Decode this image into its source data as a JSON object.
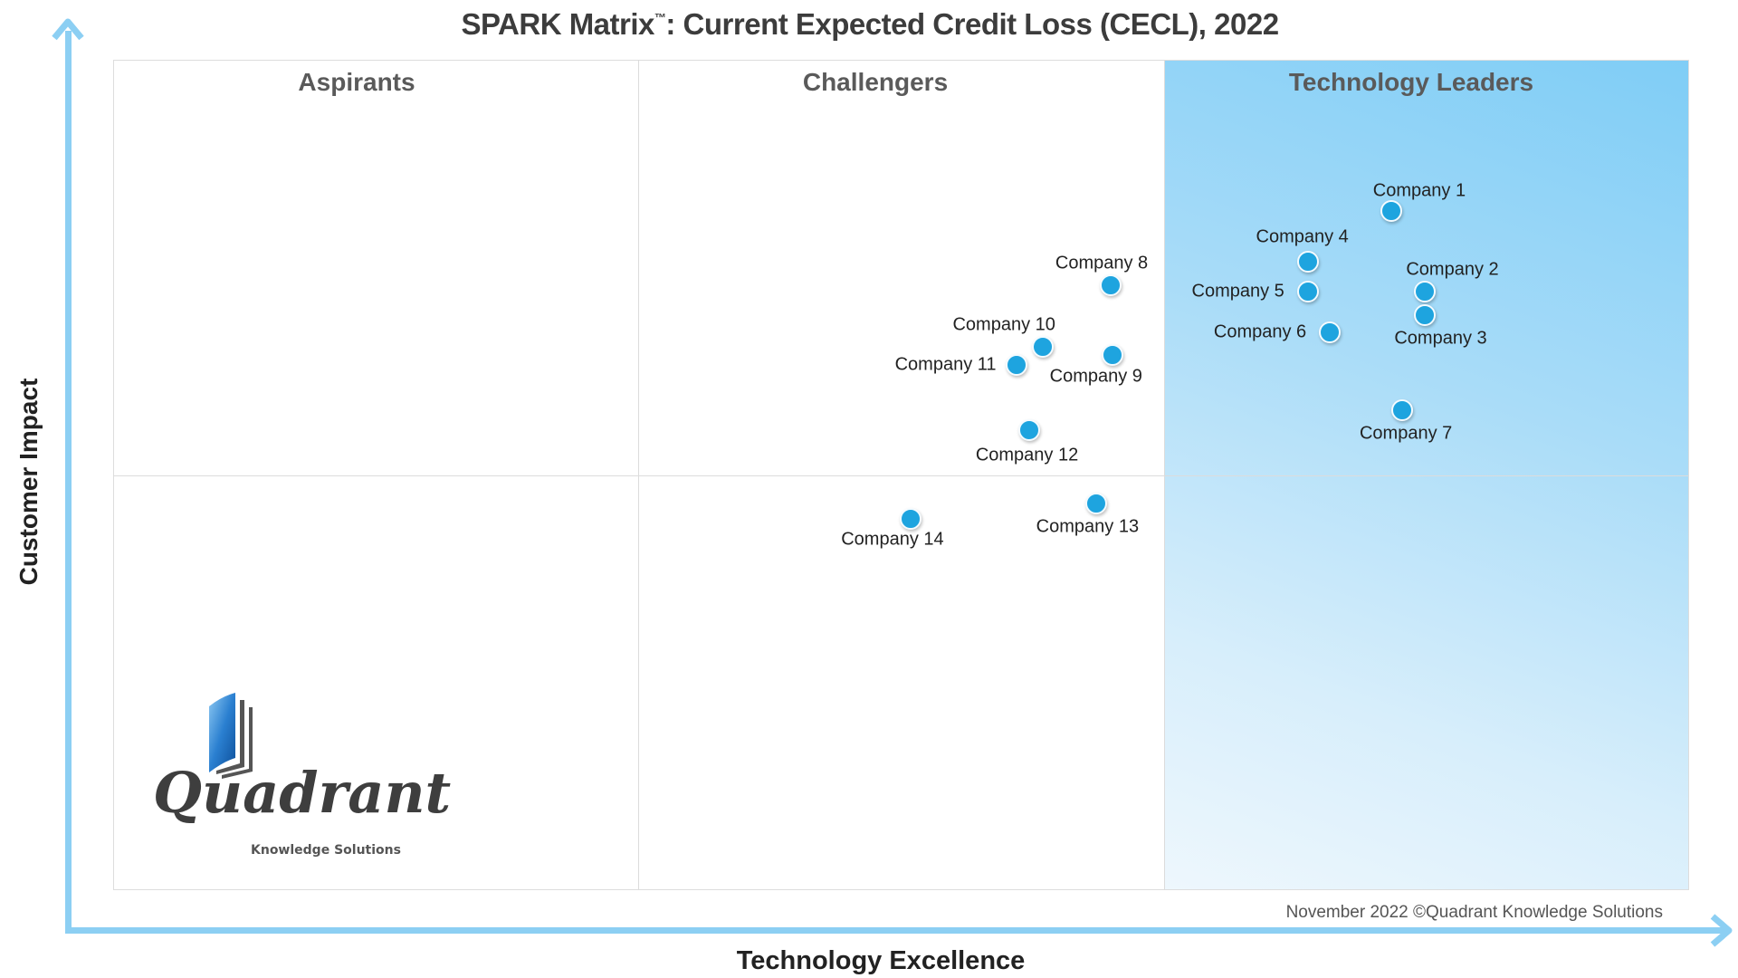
{
  "chart_data": {
    "type": "scatter",
    "title": "SPARK Matrix",
    "title_trademark": "™",
    "title_rest": ": Current Expected Credit Loss (CECL), 2022",
    "xlabel": "Technology Excellence",
    "ylabel": "Customer Impact",
    "xlim": [
      0,
      100
    ],
    "ylim": [
      0,
      100
    ],
    "quadrants": [
      "Aspirants",
      "Challengers",
      "Technology Leaders"
    ],
    "point_color": "#1ea4df",
    "axis_color": "#8ccff3",
    "leaders_color": "#7fcdf6",
    "points": [
      {
        "name": "Company 1",
        "x": 81.1,
        "y": 81.8
      },
      {
        "name": "Company 2",
        "x": 83.2,
        "y": 72.1
      },
      {
        "name": "Company 3",
        "x": 83.2,
        "y": 69.2
      },
      {
        "name": "Company 4",
        "x": 75.8,
        "y": 75.7
      },
      {
        "name": "Company 5",
        "x": 75.8,
        "y": 72.1
      },
      {
        "name": "Company 6",
        "x": 77.2,
        "y": 67.2
      },
      {
        "name": "Company 7",
        "x": 81.8,
        "y": 57.8
      },
      {
        "name": "Company 8",
        "x": 63.3,
        "y": 72.8
      },
      {
        "name": "Company 9",
        "x": 63.4,
        "y": 64.5
      },
      {
        "name": "Company 10",
        "x": 59.0,
        "y": 65.4
      },
      {
        "name": "Company 11",
        "x": 57.3,
        "y": 63.2
      },
      {
        "name": "Company 12",
        "x": 58.1,
        "y": 55.4
      },
      {
        "name": "Company 13",
        "x": 62.4,
        "y": 46.6
      },
      {
        "name": "Company 14",
        "x": 50.6,
        "y": 44.7
      }
    ]
  },
  "footer": "November 2022 ©Quadrant Knowledge Solutions",
  "logo": {
    "name": "Quadrant",
    "tagline": "Knowledge Solutions"
  }
}
